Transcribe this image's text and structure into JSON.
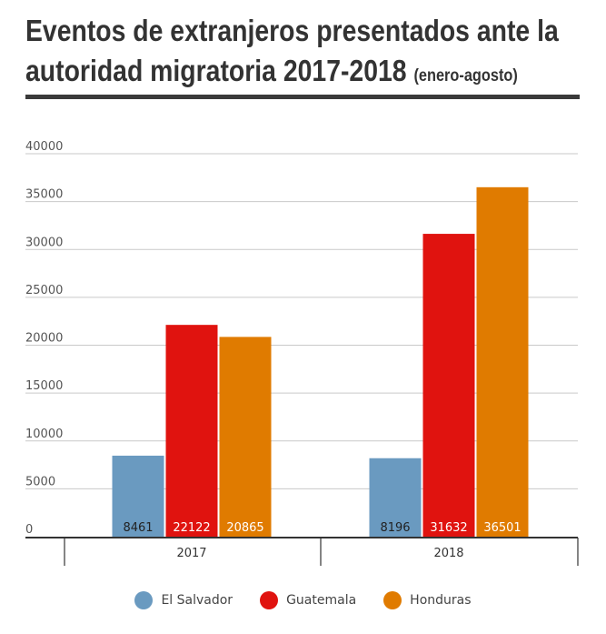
{
  "title": {
    "line1": "Eventos de extranjeros presentados ante la",
    "line2": "autoridad migratoria 2017-2018",
    "subtitle": "(enero-agosto)"
  },
  "chart_data": {
    "type": "bar",
    "categories": [
      "2017",
      "2018"
    ],
    "series": [
      {
        "name": "El Salvador",
        "color": "#6a9ac0",
        "values": [
          8461,
          8196
        ]
      },
      {
        "name": "Guatemala",
        "color": "#e0130f",
        "values": [
          22122,
          31632
        ]
      },
      {
        "name": "Honduras",
        "color": "#e07b00",
        "values": [
          20865,
          36501
        ]
      }
    ],
    "ylim": [
      0,
      40000
    ],
    "yticks": [
      0,
      5000,
      10000,
      15000,
      20000,
      25000,
      30000,
      35000,
      40000
    ],
    "grid": true,
    "legend": "bottom-center"
  }
}
